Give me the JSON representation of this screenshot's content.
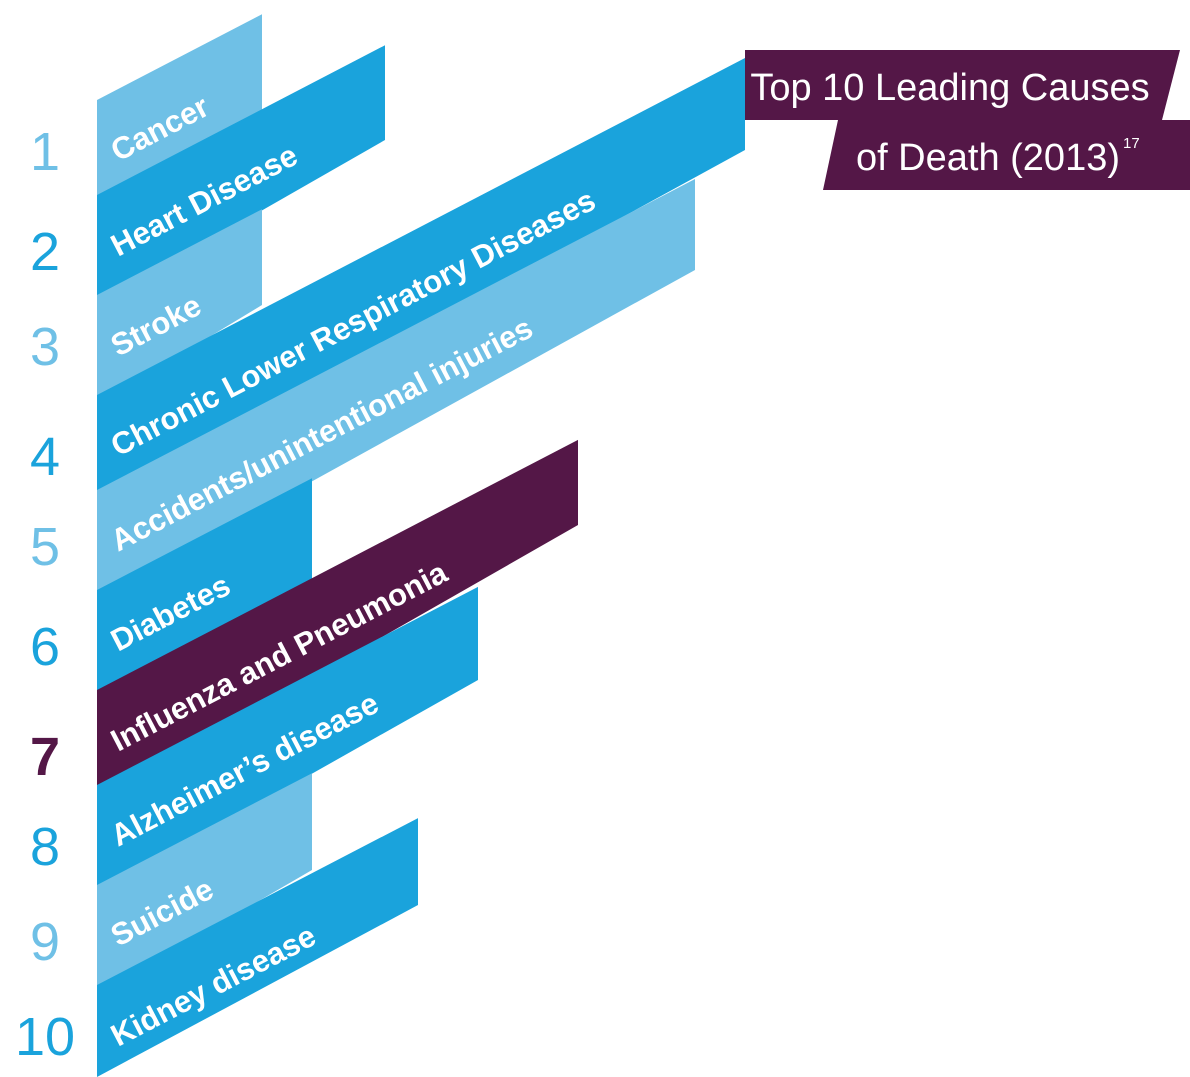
{
  "title": {
    "line1": "Top 10 Leading Causes",
    "line2": "of Death (2013)",
    "superscript": "17"
  },
  "items": [
    {
      "rank": 1,
      "label": "Cancer"
    },
    {
      "rank": 2,
      "label": "Heart Disease"
    },
    {
      "rank": 3,
      "label": "Stroke"
    },
    {
      "rank": 4,
      "label": "Chronic Lower Respiratory Diseases"
    },
    {
      "rank": 5,
      "label": "Accidents/unintentional injuries"
    },
    {
      "rank": 6,
      "label": "Diabetes"
    },
    {
      "rank": 7,
      "label": "Influenza and Pneumonia"
    },
    {
      "rank": 8,
      "label": "Alzheimer’s disease"
    },
    {
      "rank": 9,
      "label": "Suicide"
    },
    {
      "rank": 10,
      "label": "Kidney disease"
    }
  ]
}
